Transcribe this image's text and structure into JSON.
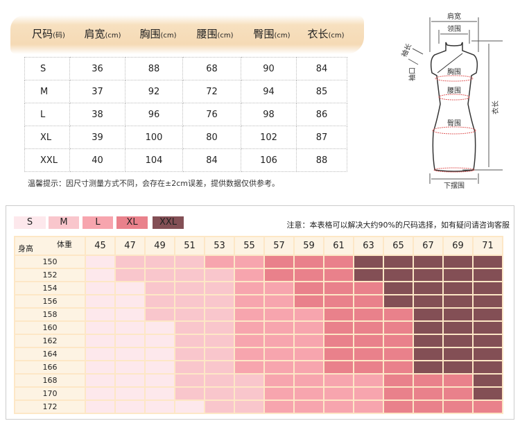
{
  "spec_table": {
    "headers": [
      {
        "main": "尺码",
        "unit": "(码)"
      },
      {
        "main": "肩宽",
        "unit": "(cm)"
      },
      {
        "main": "胸围",
        "unit": "(cm)"
      },
      {
        "main": "腰围",
        "unit": "(cm)"
      },
      {
        "main": "臀围",
        "unit": "(cm)"
      },
      {
        "main": "衣长",
        "unit": "(cm)"
      }
    ],
    "rows": [
      [
        "S",
        "36",
        "88",
        "68",
        "90",
        "84"
      ],
      [
        "M",
        "37",
        "92",
        "72",
        "94",
        "85"
      ],
      [
        "L",
        "38",
        "96",
        "76",
        "98",
        "86"
      ],
      [
        "XL",
        "39",
        "100",
        "80",
        "102",
        "87"
      ],
      [
        "XXL",
        "40",
        "104",
        "84",
        "106",
        "88"
      ]
    ],
    "tip": "温馨提示：因尺寸测量方式不同，会存在±2cm误差，提供数据仅供参考。"
  },
  "diagram": {
    "shoulder": "肩宽",
    "collar": "领围",
    "sleeve_length": "袖长",
    "cuff": "袖口",
    "chest": "胸围",
    "waist": "腰围",
    "hip": "臀围",
    "length": "衣长",
    "hem": "下摆围"
  },
  "legend": [
    {
      "label": "S",
      "color": "#fde8ec"
    },
    {
      "label": "M",
      "color": "#f9c6cc"
    },
    {
      "label": "L",
      "color": "#f7a5ae"
    },
    {
      "label": "XL",
      "color": "#e9818b"
    },
    {
      "label": "XXL",
      "color": "#834f55"
    }
  ],
  "note": "注意：本表格可以解决大约90%的尺码选择，如有疑问请咨询客服",
  "size_grid": {
    "weight_label": "体重",
    "height_label": "身高",
    "weights": [
      "45",
      "47",
      "49",
      "51",
      "53",
      "55",
      "57",
      "59",
      "61",
      "63",
      "65",
      "67",
      "69",
      "71"
    ],
    "heights": [
      "150",
      "152",
      "154",
      "156",
      "158",
      "160",
      "162",
      "164",
      "166",
      "168",
      "170",
      "172"
    ],
    "cells": [
      [
        "S",
        "M",
        "M",
        "M",
        "L",
        "L",
        "XL",
        "XL",
        "XL",
        "XXL",
        "XXL",
        "XXL",
        "XXL",
        "XXL"
      ],
      [
        "S",
        "M",
        "M",
        "M",
        "M",
        "L",
        "XL",
        "XL",
        "XL",
        "XXL",
        "XXL",
        "XXL",
        "XXL",
        "XXL"
      ],
      [
        "S",
        "S",
        "M",
        "M",
        "M",
        "L",
        "L",
        "XL",
        "XL",
        "XL",
        "XXL",
        "XXL",
        "XXL",
        "XXL"
      ],
      [
        "S",
        "S",
        "M",
        "M",
        "M",
        "L",
        "L",
        "XL",
        "XL",
        "XL",
        "XXL",
        "XXL",
        "XXL",
        "XXL"
      ],
      [
        "S",
        "S",
        "M",
        "M",
        "M",
        "L",
        "L",
        "L",
        "XL",
        "XL",
        "XL",
        "XXL",
        "XXL",
        "XXL"
      ],
      [
        "S",
        "S",
        "S",
        "M",
        "M",
        "L",
        "L",
        "L",
        "XL",
        "XL",
        "XL",
        "XXL",
        "XXL",
        "XXL"
      ],
      [
        "S",
        "S",
        "S",
        "M",
        "M",
        "L",
        "L",
        "L",
        "XL",
        "XL",
        "XL",
        "XXL",
        "XXL",
        "XXL"
      ],
      [
        "S",
        "S",
        "S",
        "M",
        "M",
        "L",
        "L",
        "L",
        "XL",
        "XL",
        "XL",
        "XXL",
        "XXL",
        "XXL"
      ],
      [
        "S",
        "S",
        "S",
        "M",
        "M",
        "L",
        "L",
        "L",
        "XL",
        "XL",
        "XL",
        "XXL",
        "XXL",
        "XXL"
      ],
      [
        "S",
        "S",
        "S",
        "M",
        "M",
        "M",
        "L",
        "L",
        "L",
        "L",
        "XL",
        "XL",
        "XL",
        "XXL"
      ],
      [
        "S",
        "S",
        "S",
        "M",
        "M",
        "M",
        "L",
        "L",
        "L",
        "L",
        "XL",
        "XL",
        "XL",
        "XXL"
      ],
      [
        "S",
        "S",
        "S",
        "S",
        "M",
        "M",
        "L",
        "L",
        "L",
        "L",
        "XL",
        "XL",
        "XL",
        "XL"
      ]
    ]
  }
}
